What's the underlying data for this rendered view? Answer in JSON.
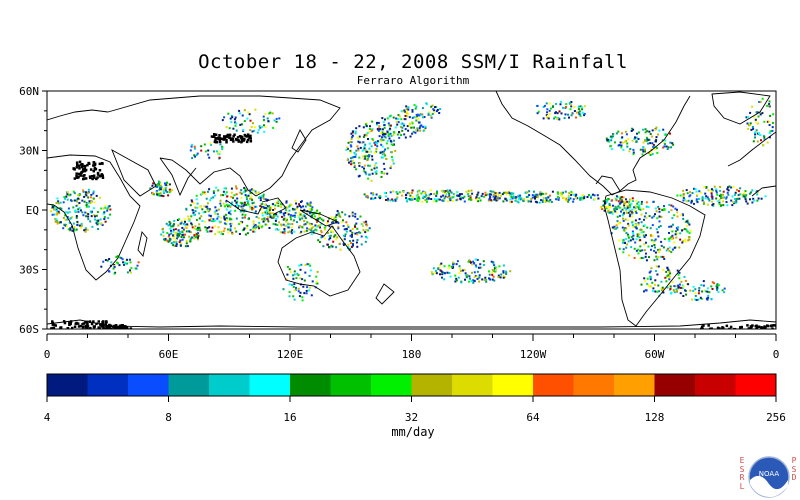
{
  "title": "October 18 - 22, 2008 SSM/I Rainfall",
  "subtitle": "Ferraro Algorithm",
  "map": {
    "lat_labels": [
      "60N",
      "30N",
      "EQ",
      "30S",
      "60S"
    ],
    "lat_values": [
      60,
      30,
      0,
      -30,
      -60
    ],
    "lon_labels": [
      "0",
      "60E",
      "120E",
      "180",
      "120W",
      "60W",
      "0"
    ],
    "lon_values": [
      0,
      60,
      120,
      180,
      240,
      300,
      360
    ]
  },
  "colorbar": {
    "units": "mm/day",
    "tick_labels": [
      "4",
      "8",
      "16",
      "32",
      "64",
      "128",
      "256"
    ],
    "colors": [
      "#001a80",
      "#0030c0",
      "#0a4cff",
      "#009a9a",
      "#00cccc",
      "#00ffff",
      "#008c00",
      "#00c000",
      "#00f000",
      "#b4b400",
      "#dcdc00",
      "#ffff00",
      "#ff5000",
      "#ff7800",
      "#ffa000",
      "#960000",
      "#c80000",
      "#ff0000"
    ]
  },
  "logo": {
    "left_text": "ESRL",
    "right_text": "PSD",
    "center_text": "NOAA"
  }
}
